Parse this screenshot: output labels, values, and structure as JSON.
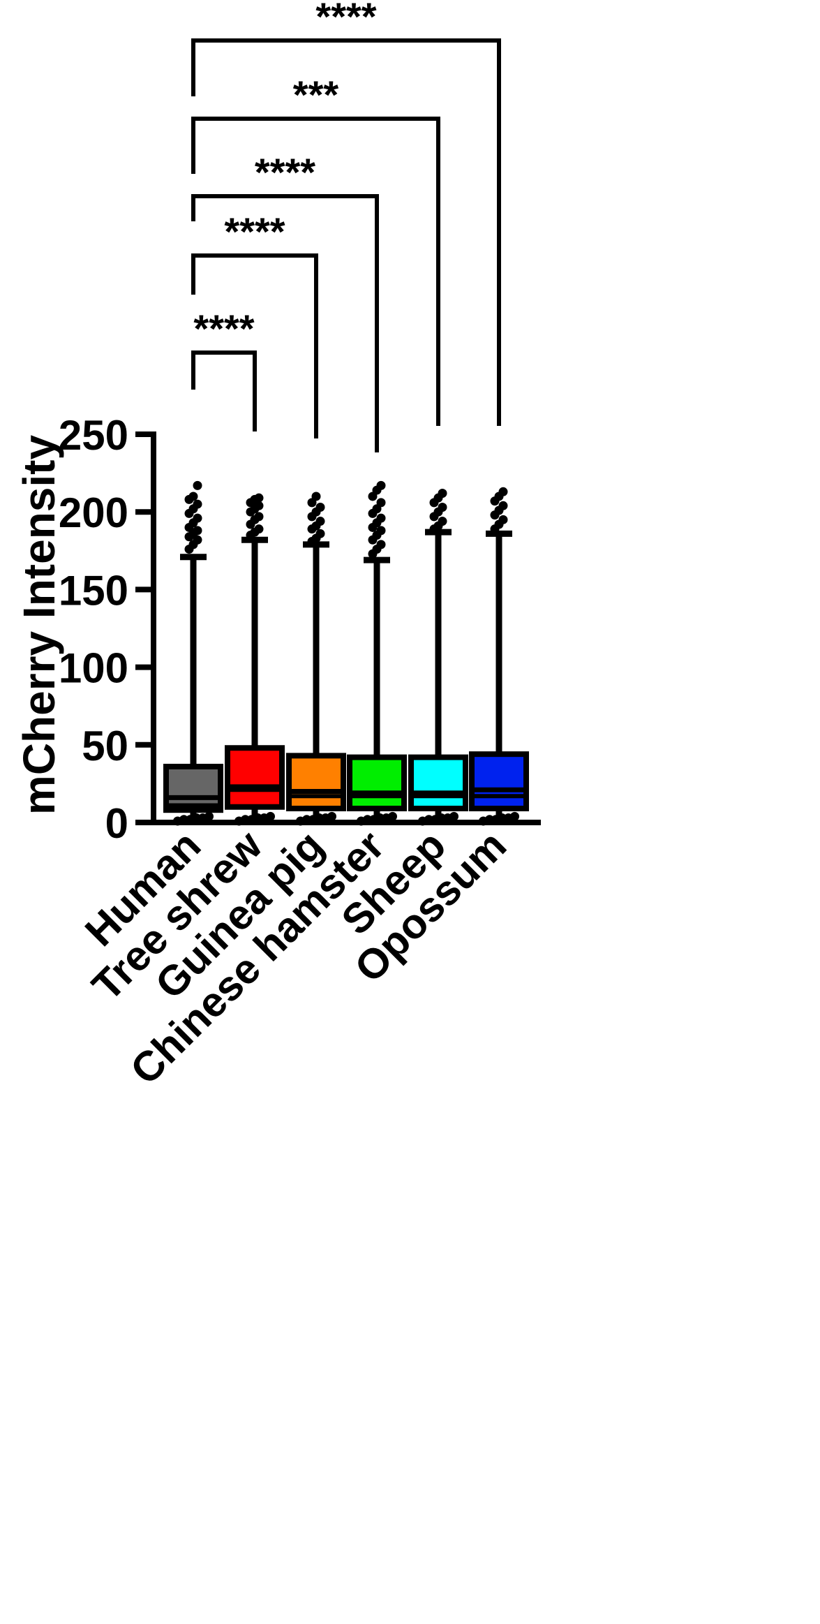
{
  "chart_data": {
    "type": "box",
    "title": "",
    "xlabel": "",
    "ylabel": "mCherry Intensity",
    "ylim": [
      0,
      250
    ],
    "yticks": [
      "0",
      "50",
      "100",
      "150",
      "200",
      "250"
    ],
    "grid": false,
    "legend": "none",
    "categories": [
      "Human",
      "Tree shrew",
      "Guinea pig",
      "Chinese hamster",
      "Sheep",
      "Opossum"
    ],
    "series": [
      {
        "category": "Human",
        "color": "#666666",
        "q1": 8,
        "median": 16,
        "q3": 36,
        "whisker_low": 0,
        "whisker_high": 171,
        "mean_line": 11,
        "outliers_high": [
          176,
          179,
          182,
          184,
          186,
          188,
          190,
          193,
          196,
          199,
          202,
          205,
          208,
          210,
          217
        ],
        "outliers_low": [
          0,
          1,
          1,
          2,
          2,
          3
        ]
      },
      {
        "category": "Tree shrew",
        "color": "#ff0000",
        "q1": 10,
        "median": 23,
        "q3": 48,
        "whisker_low": 0,
        "whisker_high": 182,
        "mean_line": 21,
        "outliers_high": [
          185,
          187,
          189,
          192,
          195,
          197,
          200,
          202,
          204,
          206,
          208,
          209
        ],
        "outliers_low": [
          0,
          1,
          1,
          2,
          2,
          3
        ]
      },
      {
        "category": "Guinea pig",
        "color": "#ff8000",
        "q1": 9,
        "median": 20,
        "q3": 43,
        "whisker_low": 0,
        "whisker_high": 179,
        "mean_line": 17,
        "outliers_high": [
          181,
          183,
          186,
          189,
          191,
          194,
          197,
          200,
          203,
          206,
          210
        ],
        "outliers_low": [
          0,
          1,
          1,
          2,
          2,
          3
        ]
      },
      {
        "category": "Chinese hamster",
        "color": "#00ee00",
        "q1": 9,
        "median": 19,
        "q3": 42,
        "whisker_low": 0,
        "whisker_high": 169,
        "mean_line": 17,
        "outliers_high": [
          173,
          176,
          179,
          182,
          185,
          188,
          190,
          193,
          196,
          199,
          202,
          206,
          210,
          214,
          217
        ],
        "outliers_low": [
          0,
          1,
          1,
          2,
          2,
          3
        ]
      },
      {
        "category": "Sheep",
        "color": "#00ffff",
        "q1": 9,
        "median": 19,
        "q3": 42,
        "whisker_low": 0,
        "whisker_high": 187,
        "mean_line": 17,
        "outliers_high": [
          189,
          191,
          194,
          197,
          200,
          203,
          206,
          209,
          212
        ],
        "outliers_low": [
          0,
          1,
          1,
          2,
          2,
          3
        ]
      },
      {
        "category": "Opossum",
        "color": "#0022ee",
        "q1": 9,
        "median": 21,
        "q3": 44,
        "whisker_low": 0,
        "whisker_high": 186,
        "mean_line": 17,
        "outliers_high": [
          189,
          192,
          195,
          198,
          201,
          204,
          207,
          210,
          213
        ],
        "outliers_low": [
          0,
          1,
          1,
          2,
          2,
          3
        ]
      }
    ],
    "comparisons": [
      {
        "from": "Human",
        "to": "Tree shrew",
        "label": "****"
      },
      {
        "from": "Human",
        "to": "Guinea pig",
        "label": "****"
      },
      {
        "from": "Human",
        "to": "Chinese hamster",
        "label": "****"
      },
      {
        "from": "Human",
        "to": "Sheep",
        "label": "***"
      },
      {
        "from": "Human",
        "to": "Opossum",
        "label": "****"
      }
    ]
  }
}
